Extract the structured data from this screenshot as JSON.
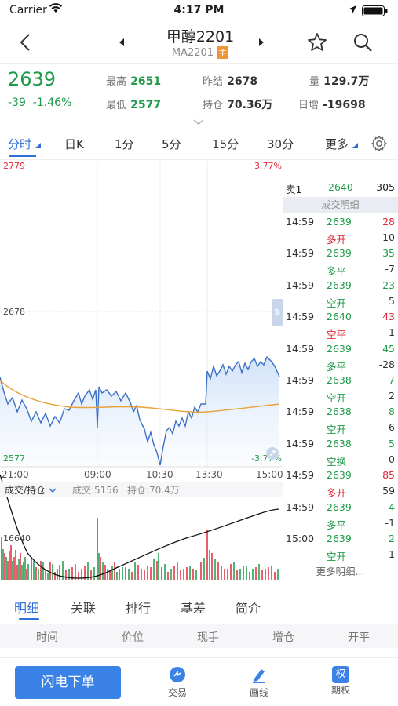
{
  "status_bar": {
    "carrier": "Carrier",
    "time": "4:17 PM"
  },
  "nav": {
    "title": "甲醇2201",
    "subtitle": "MA2201",
    "badge": "主"
  },
  "quote": {
    "price": "2639",
    "change": "-39",
    "change_pct": "-1.46%",
    "high_label": "最高",
    "high_value": "2651",
    "low_label": "最低",
    "low_value": "2577",
    "prev_settle_label": "昨结",
    "prev_settle_value": "2678",
    "open_interest_label": "持仓",
    "open_interest_value": "70.36万",
    "volume_label": "量",
    "volume_value": "129.7万",
    "daily_add_label": "日增",
    "daily_add_value": "-19698"
  },
  "tabs": [
    "分时",
    "日K",
    "1分",
    "5分",
    "15分",
    "30分",
    "更多"
  ],
  "chart": {
    "top_price": "2779",
    "top_pct": "3.77%",
    "mid_price": "2678",
    "bottom_price": "2577",
    "bottom_pct": "-3.77%",
    "time_labels": [
      "21:00",
      "09:00",
      "10:30",
      "13:30",
      "15:00"
    ],
    "volume_header": "成交/持仓",
    "volume_text": "成交:5156",
    "oi_text": "持仓:70.4万",
    "volume_axis_label": "16640"
  },
  "detail": {
    "ask_label": "卖1",
    "ask_price": "2640",
    "ask_qty": "305",
    "header": "成交明细",
    "more": "更多明细...",
    "trades": [
      {
        "time": "14:59",
        "price": "2639",
        "qty": "28",
        "type": "多开",
        "oi": "10",
        "pc": "green",
        "qc": "red",
        "tc": "red"
      },
      {
        "time": "14:59",
        "price": "2639",
        "qty": "35",
        "type": "多平",
        "oi": "-7",
        "pc": "green",
        "qc": "green",
        "tc": "green"
      },
      {
        "time": "14:59",
        "price": "2639",
        "qty": "23",
        "type": "空开",
        "oi": "5",
        "pc": "green",
        "qc": "green",
        "tc": "green"
      },
      {
        "time": "14:59",
        "price": "2640",
        "qty": "43",
        "type": "空平",
        "oi": "-1",
        "pc": "green",
        "qc": "red",
        "tc": "red"
      },
      {
        "time": "14:59",
        "price": "2639",
        "qty": "45",
        "type": "多平",
        "oi": "-28",
        "pc": "green",
        "qc": "green",
        "tc": "green"
      },
      {
        "time": "14:59",
        "price": "2638",
        "qty": "7",
        "type": "空开",
        "oi": "2",
        "pc": "green",
        "qc": "green",
        "tc": "green"
      },
      {
        "time": "14:59",
        "price": "2638",
        "qty": "8",
        "type": "空开",
        "oi": "6",
        "pc": "green",
        "qc": "green",
        "tc": "green"
      },
      {
        "time": "14:59",
        "price": "2638",
        "qty": "5",
        "type": "空换",
        "oi": "0",
        "pc": "green",
        "qc": "green",
        "tc": "green"
      },
      {
        "time": "14:59",
        "price": "2639",
        "qty": "85",
        "type": "多开",
        "oi": "59",
        "pc": "green",
        "qc": "red",
        "tc": "red"
      },
      {
        "time": "14:59",
        "price": "2639",
        "qty": "4",
        "type": "多平",
        "oi": "-1",
        "pc": "green",
        "qc": "green",
        "tc": "green"
      },
      {
        "time": "15:00",
        "price": "2639",
        "qty": "2",
        "type": "空开",
        "oi": "1",
        "pc": "green",
        "qc": "green",
        "tc": "green"
      }
    ]
  },
  "bottom_tabs": [
    "明细",
    "关联",
    "排行",
    "基差",
    "简介"
  ],
  "columns": [
    "时间",
    "价位",
    "现手",
    "增仓",
    "开平"
  ],
  "footer": {
    "flash_order": "闪电下单",
    "trade": "交易",
    "draw": "画线",
    "options": "期权",
    "options_icon_char": "权"
  },
  "colors": {
    "up": "#e0283a",
    "down": "#1e9a4a",
    "accent": "#2f6fd6",
    "avg_line": "#e8a23a"
  }
}
